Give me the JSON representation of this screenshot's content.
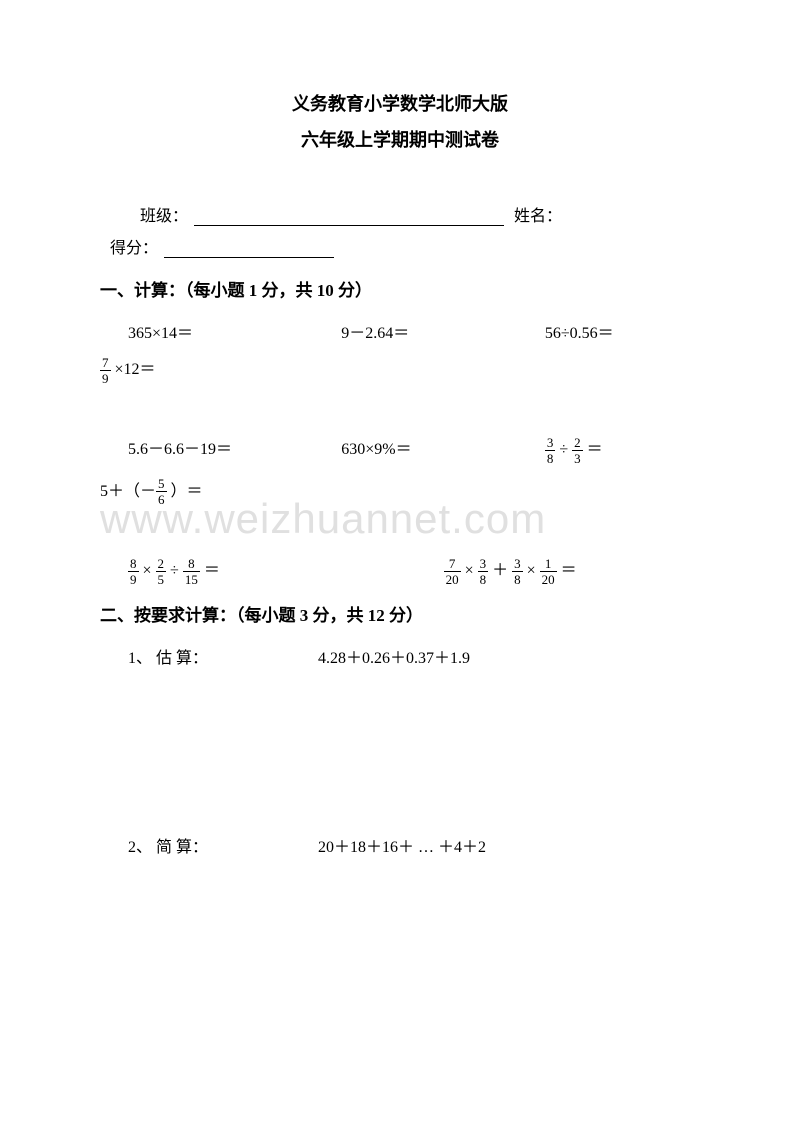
{
  "colors": {
    "background": "#ffffff",
    "text": "#000000",
    "watermark": "#e0e0e0",
    "underline": "#000000"
  },
  "typography": {
    "body_fontsize": 16,
    "title_fontsize": 18,
    "section_fontsize": 17,
    "frac_fontsize": 13,
    "watermark_fontsize": 42,
    "font_family": "SimSun"
  },
  "header": {
    "title1": "义务教育小学数学北师大版",
    "title2": "六年级上学期期中测试卷"
  },
  "info": {
    "class_label": "班级：",
    "name_label": "姓名：",
    "score_label": "得分："
  },
  "section1": {
    "header": "一、计算：（每小题 1 分，共 10 分）",
    "row1": {
      "p1": "365×14＝",
      "p2": "9－2.64＝",
      "p3": "56÷0.56＝"
    },
    "row1b": {
      "frac_num": "7",
      "frac_den": "9",
      "rest": " ×12＝"
    },
    "row2": {
      "p1": "5.6－6.6－19＝",
      "p2": "630×9%＝",
      "p3_a_num": "3",
      "p3_a_den": "8",
      "p3_op": " ÷ ",
      "p3_b_num": "2",
      "p3_b_den": "3",
      "p3_eq": " ＝"
    },
    "row2b": {
      "prefix": "5＋（－",
      "frac_num": "5",
      "frac_den": "6",
      "suffix": " ）＝"
    },
    "row3": {
      "p1_a_num": "8",
      "p1_a_den": "9",
      "p1_op1": " × ",
      "p1_b_num": "2",
      "p1_b_den": "5",
      "p1_op2": " ÷ ",
      "p1_c_num": "8",
      "p1_c_den": "15",
      "p1_eq": " ＝",
      "p2_a_num": "7",
      "p2_a_den": "20",
      "p2_op1": " × ",
      "p2_b_num": "3",
      "p2_b_den": "8",
      "p2_op2": " ＋ ",
      "p2_c_num": "3",
      "p2_c_den": "8",
      "p2_op3": " × ",
      "p2_d_num": "1",
      "p2_d_den": "20",
      "p2_eq": " ＝"
    }
  },
  "section2": {
    "header": "二、按要求计算：（每小题 3 分，共 12 分）",
    "p1": {
      "label": "1、 估 算：",
      "expr": "4.28＋0.26＋0.37＋1.9"
    },
    "p2": {
      "label": "2、 简 算：",
      "expr": "20＋18＋16＋ … ＋4＋2"
    }
  },
  "watermark": "www.weizhuannet.com"
}
